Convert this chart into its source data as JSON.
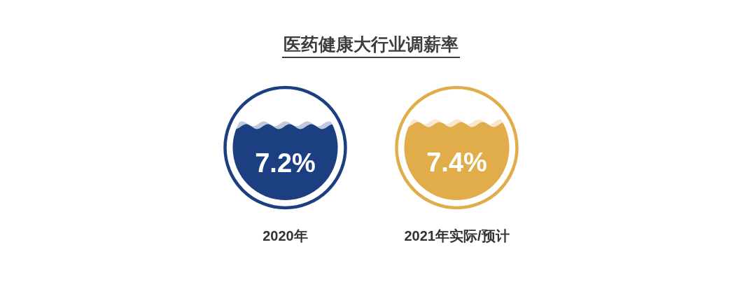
{
  "chart_data": {
    "type": "other",
    "title": "医药健康大行业调薪率",
    "categories": [
      "2020年",
      "2021年实际/预计"
    ],
    "values": [
      7.2,
      7.4
    ],
    "value_labels": [
      "7.2%",
      "7.4%"
    ],
    "colors": [
      "#1b3f80",
      "#e1ad4b"
    ]
  }
}
